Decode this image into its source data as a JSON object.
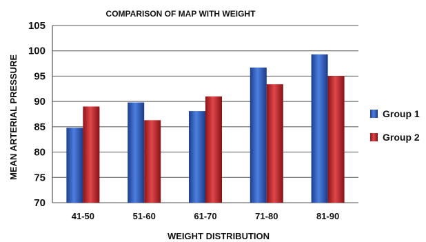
{
  "chart_data": {
    "type": "bar",
    "title": "COMPARISON OF MAP WITH WEIGHT",
    "xlabel": "WEIGHT DISTRIBUTION",
    "ylabel": "MEAN ARTERIAL  PRESSURE",
    "categories": [
      "41-50",
      "51-60",
      "61-70",
      "71-80",
      "81-90"
    ],
    "series": [
      {
        "name": "Group 1",
        "values": [
          84.8,
          89.8,
          88.1,
          96.7,
          99.3
        ],
        "color": "#2f5fc8"
      },
      {
        "name": "Group 2",
        "values": [
          89.0,
          86.3,
          91.0,
          93.4,
          95.0
        ],
        "color": "#c0282a"
      }
    ],
    "ylim": [
      70,
      105
    ],
    "yticks": [
      "70",
      "75",
      "80",
      "85",
      "90",
      "95",
      "100",
      "105"
    ],
    "grid": true,
    "legend": "right"
  }
}
